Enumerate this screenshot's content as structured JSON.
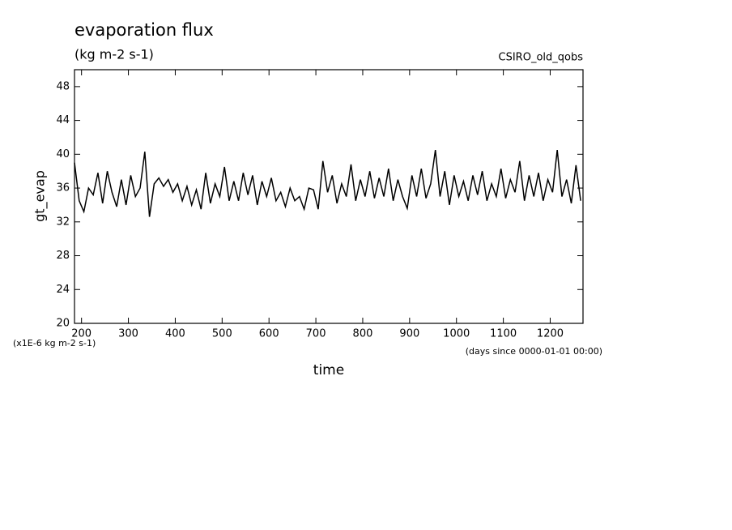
{
  "chart_data": {
    "type": "line",
    "title": "evaporation flux",
    "subtitle": "(kg m-2 s-1)",
    "dataset_label": "CSIRO_old_qobs",
    "y_label": "gt_evap",
    "x_label": "time",
    "y_scale_note": "(x1E-6 kg m-2 s-1)",
    "x_units": "(days since 0000-01-01 00:00)",
    "xlim": [
      185,
      1270
    ],
    "ylim": [
      20,
      50
    ],
    "xticks": [
      200,
      300,
      400,
      500,
      600,
      700,
      800,
      900,
      1000,
      1100,
      1200
    ],
    "yticks": [
      20,
      24,
      28,
      32,
      36,
      40,
      44,
      48
    ],
    "grid": false,
    "x": [
      185,
      195,
      205,
      215,
      225,
      235,
      245,
      255,
      265,
      275,
      285,
      295,
      305,
      315,
      325,
      335,
      345,
      355,
      365,
      375,
      385,
      395,
      405,
      415,
      425,
      435,
      445,
      455,
      465,
      475,
      485,
      495,
      505,
      515,
      525,
      535,
      545,
      555,
      565,
      575,
      585,
      595,
      605,
      615,
      625,
      635,
      645,
      655,
      665,
      675,
      685,
      695,
      705,
      715,
      725,
      735,
      745,
      755,
      765,
      775,
      785,
      795,
      805,
      815,
      825,
      835,
      845,
      855,
      865,
      875,
      885,
      895,
      905,
      915,
      925,
      935,
      945,
      955,
      965,
      975,
      985,
      995,
      1005,
      1015,
      1025,
      1035,
      1045,
      1055,
      1065,
      1075,
      1085,
      1095,
      1105,
      1115,
      1125,
      1135,
      1145,
      1155,
      1165,
      1175,
      1185,
      1195,
      1205,
      1215,
      1225,
      1235,
      1245,
      1255,
      1265
    ],
    "series": [
      {
        "name": "gt_evap",
        "color": "#000000",
        "values": [
          39,
          34.5,
          33.2,
          36,
          35.2,
          37.8,
          34.2,
          38,
          35.5,
          33.8,
          37,
          34,
          37.5,
          35,
          36,
          40.3,
          32.6,
          36.5,
          37.2,
          36.2,
          37,
          35.5,
          36.5,
          34.5,
          36.2,
          34,
          35.8,
          33.5,
          37.8,
          34.2,
          36.5,
          35,
          38.5,
          34.5,
          36.8,
          34.5,
          37.8,
          35.2,
          37.5,
          34,
          36.8,
          35,
          37.2,
          34.5,
          35.5,
          33.8,
          36,
          34.5,
          35,
          33.5,
          36,
          35.8,
          33.5,
          39.2,
          35.5,
          37.5,
          34.2,
          36.5,
          35,
          38.8,
          34.5,
          37,
          35,
          38,
          34.8,
          37.2,
          35,
          38.3,
          34.5,
          37,
          35,
          33.6,
          37.5,
          35,
          38.3,
          34.8,
          36.5,
          40.5,
          35,
          38,
          34,
          37.5,
          35,
          36.8,
          34.5,
          37.5,
          35.2,
          38,
          34.5,
          36.5,
          35,
          38.3,
          34.8,
          37,
          35.5,
          39.2,
          34.5,
          37.5,
          35,
          37.8,
          34.5,
          37,
          35.5,
          40.5,
          35,
          37,
          34.2,
          38.7,
          34.5
        ]
      }
    ]
  }
}
